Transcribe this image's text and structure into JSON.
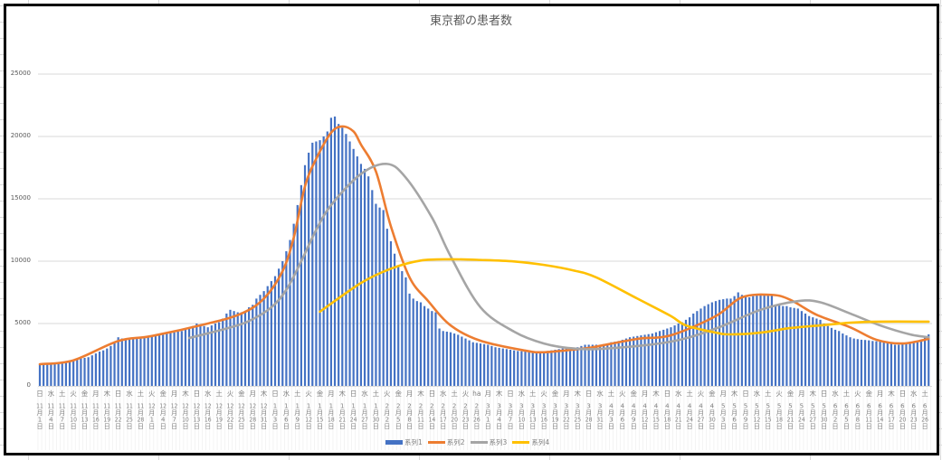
{
  "chart_data": {
    "type": "bar+line",
    "title": "東京都の患者数",
    "ylim": [
      0,
      25000
    ],
    "yticks": [
      "0",
      "5000",
      "10000",
      "15000",
      "20000",
      "25000"
    ],
    "grid": true,
    "legend_position": "bottom",
    "categories": [
      {
        "dow": "日",
        "label": "11月1日"
      },
      {
        "dow": "水",
        "label": "11月4日"
      },
      {
        "dow": "土",
        "label": "11月7日"
      },
      {
        "dow": "火",
        "label": "11月10日"
      },
      {
        "dow": "金",
        "label": "11月13日"
      },
      {
        "dow": "月",
        "label": "11月16日"
      },
      {
        "dow": "木",
        "label": "11月19日"
      },
      {
        "dow": "日",
        "label": "11月22日"
      },
      {
        "dow": "水",
        "label": "11月25日"
      },
      {
        "dow": "土",
        "label": "11月28日"
      },
      {
        "dow": "火",
        "label": "12月1日"
      },
      {
        "dow": "金",
        "label": "12月4日"
      },
      {
        "dow": "月",
        "label": "12月7日"
      },
      {
        "dow": "木",
        "label": "12月10日"
      },
      {
        "dow": "日",
        "label": "12月13日"
      },
      {
        "dow": "水",
        "label": "12月16日"
      },
      {
        "dow": "土",
        "label": "12月19日"
      },
      {
        "dow": "火",
        "label": "12月22日"
      },
      {
        "dow": "金",
        "label": "12月25日"
      },
      {
        "dow": "月",
        "label": "12月28日"
      },
      {
        "dow": "木",
        "label": "12月31日"
      },
      {
        "dow": "日",
        "label": "1月3日"
      },
      {
        "dow": "水",
        "label": "1月6日"
      },
      {
        "dow": "土",
        "label": "1月9日"
      },
      {
        "dow": "火",
        "label": "1月12日"
      },
      {
        "dow": "金",
        "label": "1月15日"
      },
      {
        "dow": "月",
        "label": "1月18日"
      },
      {
        "dow": "木",
        "label": "1月21日"
      },
      {
        "dow": "日",
        "label": "1月24日"
      },
      {
        "dow": "水",
        "label": "1月27日"
      },
      {
        "dow": "土",
        "label": "1月30日"
      },
      {
        "dow": "火",
        "label": "2月2日"
      },
      {
        "dow": "金",
        "label": "2月5日"
      },
      {
        "dow": "月",
        "label": "2月8日"
      },
      {
        "dow": "木",
        "label": "2月11日"
      },
      {
        "dow": "日",
        "label": "2月14日"
      },
      {
        "dow": "水",
        "label": "2月17日"
      },
      {
        "dow": "土",
        "label": "2月20日"
      },
      {
        "dow": "火",
        "label": "2月23日"
      },
      {
        "dow": "ha",
        "label": "2月26日"
      },
      {
        "dow": "月",
        "label": "3月1日"
      },
      {
        "dow": "木",
        "label": "3月4日"
      },
      {
        "dow": "日",
        "label": "3月7日"
      },
      {
        "dow": "水",
        "label": "3月10日"
      },
      {
        "dow": "土",
        "label": "3月13日"
      },
      {
        "dow": "火",
        "label": "3月16日"
      },
      {
        "dow": "金",
        "label": "3月19日"
      },
      {
        "dow": "月",
        "label": "3月22日"
      },
      {
        "dow": "木",
        "label": "3月25日"
      },
      {
        "dow": "日",
        "label": "3月28日"
      },
      {
        "dow": "水",
        "label": "3月31日"
      },
      {
        "dow": "土",
        "label": "4月3日"
      },
      {
        "dow": "火",
        "label": "4月6日"
      },
      {
        "dow": "金",
        "label": "4月9日"
      },
      {
        "dow": "月",
        "label": "4月12日"
      },
      {
        "dow": "木",
        "label": "4月15日"
      },
      {
        "dow": "日",
        "label": "4月18日"
      },
      {
        "dow": "水",
        "label": "4月21日"
      },
      {
        "dow": "土",
        "label": "4月24日"
      },
      {
        "dow": "火",
        "label": "4月27日"
      },
      {
        "dow": "金",
        "label": "4月30日"
      },
      {
        "dow": "月",
        "label": "5月3日"
      },
      {
        "dow": "木",
        "label": "5月6日"
      },
      {
        "dow": "日",
        "label": "5月9日"
      },
      {
        "dow": "水",
        "label": "5月12日"
      },
      {
        "dow": "土",
        "label": "5月15日"
      },
      {
        "dow": "火",
        "label": "5月18日"
      },
      {
        "dow": "金",
        "label": "5月21日"
      },
      {
        "dow": "月",
        "label": "5月24日"
      },
      {
        "dow": "木",
        "label": "5月27日"
      },
      {
        "dow": "日",
        "label": "5月30日"
      },
      {
        "dow": "水",
        "label": "6月2日"
      },
      {
        "dow": "土",
        "label": "6月5日"
      },
      {
        "dow": "火",
        "label": "6月8日"
      },
      {
        "dow": "金",
        "label": "6月11日"
      },
      {
        "dow": "月",
        "label": "6月14日"
      },
      {
        "dow": "木",
        "label": "6月17日"
      },
      {
        "dow": "日",
        "label": "6月20日"
      },
      {
        "dow": "水",
        "label": "6月23日"
      },
      {
        "dow": "土",
        "label": "6月26日"
      }
    ],
    "series": [
      {
        "name": "系列1",
        "type": "bar",
        "color": "#4472C4",
        "daily_values": [
          1740,
          1760,
          1780,
          1800,
          1830,
          1870,
          1920,
          1980,
          2040,
          2100,
          2150,
          2200,
          2250,
          2300,
          2450,
          2600,
          2750,
          2850,
          3000,
          3200,
          3500,
          3900,
          3800,
          3750,
          3700,
          3750,
          3780,
          3800,
          3900,
          4000,
          4050,
          4050,
          4100,
          4100,
          4200,
          4250,
          4300,
          4350,
          4400,
          4500,
          4600,
          4800,
          5000,
          4900,
          4800,
          4700,
          4850,
          5000,
          5100,
          5400,
          5800,
          6100,
          6000,
          5900,
          5900,
          6000,
          6300,
          6500,
          7000,
          7300,
          7600,
          8000,
          8400,
          8800,
          9400,
          10000,
          10800,
          11700,
          13000,
          14500,
          16100,
          17700,
          18700,
          19500,
          19600,
          19700,
          20000,
          20400,
          21500,
          21600,
          21000,
          20700,
          20200,
          19600,
          19000,
          18400,
          17800,
          17400,
          16800,
          15700,
          14600,
          14300,
          14100,
          12600,
          11600,
          10600,
          9600,
          9200,
          8700,
          7400,
          7000,
          6800,
          6700,
          6400,
          6200,
          6000,
          5900,
          4600,
          4400,
          4350,
          4300,
          4200,
          4100,
          3950,
          3800,
          3650,
          3500,
          3450,
          3400,
          3350,
          3300,
          3200,
          3100,
          3050,
          3000,
          2950,
          2900,
          2850,
          2800,
          2780,
          2750,
          2720,
          2700,
          2720,
          2750,
          2780,
          2800,
          2850,
          2900,
          2950,
          3000,
          3020,
          3050,
          3080,
          3100,
          3200,
          3300,
          3300,
          3300,
          3300,
          3300,
          3350,
          3400,
          3500,
          3550,
          3600,
          3700,
          3800,
          3900,
          3950,
          4000,
          4050,
          4100,
          4150,
          4200,
          4300,
          4400,
          4500,
          4600,
          4700,
          4850,
          5000,
          5100,
          5300,
          5500,
          5800,
          6000,
          6200,
          6400,
          6550,
          6700,
          6800,
          6900,
          6950,
          7000,
          7000,
          7200,
          7500,
          7300,
          7200,
          7100,
          7200,
          7300,
          7400,
          7350,
          7300,
          7300,
          6500,
          6450,
          6400,
          6400,
          6300,
          6250,
          6200,
          6000,
          5800,
          5600,
          5500,
          5400,
          5300,
          5000,
          4800,
          4650,
          4500,
          4400,
          4200,
          4050,
          3900,
          3800,
          3750,
          3700,
          3680,
          3650,
          3600,
          3580,
          3550,
          3500,
          3450,
          3400,
          3300,
          3300,
          3350,
          3400,
          3450,
          3500,
          3500,
          3600,
          4000,
          4130
        ]
      },
      {
        "name": "系列2",
        "type": "line",
        "color": "#ED7D31",
        "points": [
          [
            "11/1",
            1740
          ],
          [
            "11/10",
            2050
          ],
          [
            "11/22",
            3600
          ],
          [
            "12/1",
            4000
          ],
          [
            "12/16",
            5000
          ],
          [
            "12/25",
            5800
          ],
          [
            "12/31",
            7000
          ],
          [
            "1/5",
            9200
          ],
          [
            "1/8",
            11900
          ],
          [
            "1/11",
            16000
          ],
          [
            "1/14",
            18200
          ],
          [
            "1/18",
            20300
          ],
          [
            "1/21",
            20800
          ],
          [
            "1/24",
            20400
          ],
          [
            "1/26",
            19350
          ],
          [
            "1/30",
            17200
          ],
          [
            "2/3",
            12800
          ],
          [
            "2/8",
            8700
          ],
          [
            "2/13",
            6800
          ],
          [
            "2/19",
            4850
          ],
          [
            "2/27",
            3620
          ],
          [
            "3/11",
            2830
          ],
          [
            "3/16",
            2700
          ],
          [
            "3/25",
            2950
          ],
          [
            "3/29",
            3100
          ],
          [
            "4/10",
            3770
          ],
          [
            "4/19",
            4060
          ],
          [
            "5/1",
            5600
          ],
          [
            "5/8",
            7100
          ],
          [
            "5/16",
            7300
          ],
          [
            "5/21",
            6900
          ],
          [
            "5/28",
            5700
          ],
          [
            "6/6",
            4700
          ],
          [
            "6/13",
            3700
          ],
          [
            "6/20",
            3400
          ],
          [
            "6/27",
            3770
          ]
        ]
      },
      {
        "name": "系列3",
        "type": "line",
        "color": "#A5A5A5",
        "points": [
          [
            "12/11",
            3840
          ],
          [
            "12/21",
            4600
          ],
          [
            "12/27",
            5200
          ],
          [
            "1/2",
            6300
          ],
          [
            "1/6",
            7700
          ],
          [
            "1/10",
            10000
          ],
          [
            "1/14",
            12500
          ],
          [
            "1/18",
            14500
          ],
          [
            "1/26",
            17000
          ],
          [
            "2/2",
            17800
          ],
          [
            "2/7",
            16700
          ],
          [
            "2/14",
            13500
          ],
          [
            "2/19",
            10400
          ],
          [
            "2/27",
            6300
          ],
          [
            "3/8",
            4350
          ],
          [
            "3/16",
            3400
          ],
          [
            "3/24",
            3000
          ],
          [
            "4/2",
            3000
          ],
          [
            "4/19",
            3550
          ],
          [
            "5/1",
            4600
          ],
          [
            "5/13",
            6100
          ],
          [
            "5/23",
            6800
          ],
          [
            "5/29",
            6700
          ],
          [
            "6/6",
            5800
          ],
          [
            "6/14",
            4850
          ],
          [
            "6/22",
            4130
          ],
          [
            "6/27",
            3900
          ]
        ]
      },
      {
        "name": "系列4",
        "type": "line",
        "color": "#FFC000",
        "points": [
          [
            "1/15",
            5950
          ],
          [
            "1/26",
            8250
          ],
          [
            "2/3",
            9400
          ],
          [
            "2/11",
            10050
          ],
          [
            "2/19",
            10150
          ],
          [
            "2/27",
            10100
          ],
          [
            "3/8",
            9980
          ],
          [
            "3/16",
            9700
          ],
          [
            "3/24",
            9250
          ],
          [
            "3/30",
            8700
          ],
          [
            "4/10",
            7000
          ],
          [
            "4/19",
            5600
          ],
          [
            "4/23",
            4850
          ],
          [
            "5/1",
            4270
          ],
          [
            "5/5",
            4130
          ],
          [
            "5/13",
            4270
          ],
          [
            "5/21",
            4640
          ],
          [
            "5/29",
            4850
          ],
          [
            "6/6",
            5070
          ],
          [
            "6/14",
            5150
          ],
          [
            "6/27",
            5150
          ]
        ]
      }
    ]
  }
}
